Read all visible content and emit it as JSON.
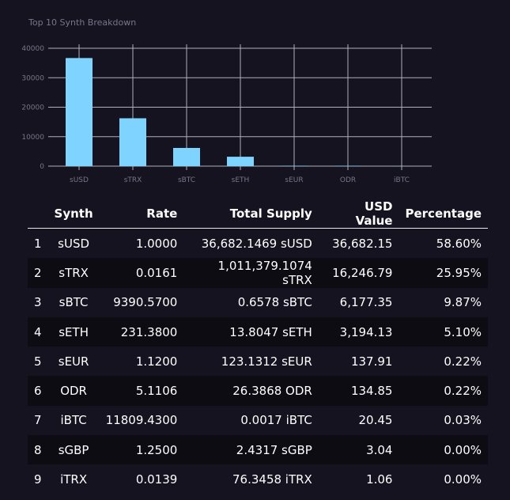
{
  "chart_data": {
    "type": "bar",
    "title": "Top 10 Synth Breakdown",
    "categories": [
      "sUSD",
      "sTRX",
      "sBTC",
      "sETH",
      "sEUR",
      "ODR",
      "iBTC"
    ],
    "values": [
      36682.15,
      16246.79,
      6177.35,
      3194.13,
      137.91,
      134.85,
      20.45
    ],
    "yticks": [
      0,
      10000,
      20000,
      30000,
      40000
    ],
    "ylim": [
      0,
      40000
    ],
    "grid": true,
    "bar_color": "#7fd3ff"
  },
  "table": {
    "headers": [
      "",
      "Synth",
      "Rate",
      "Total Supply",
      "USD Value",
      "Percentage"
    ],
    "rows": [
      [
        "1",
        "sUSD",
        "1.0000",
        "36,682.1469 sUSD",
        "36,682.15",
        "58.60%"
      ],
      [
        "2",
        "sTRX",
        "0.0161",
        "1,011,379.1074 sTRX",
        "16,246.79",
        "25.95%"
      ],
      [
        "3",
        "sBTC",
        "9390.5700",
        "0.6578 sBTC",
        "6,177.35",
        "9.87%"
      ],
      [
        "4",
        "sETH",
        "231.3800",
        "13.8047 sETH",
        "3,194.13",
        "5.10%"
      ],
      [
        "5",
        "sEUR",
        "1.1200",
        "123.1312 sEUR",
        "137.91",
        "0.22%"
      ],
      [
        "6",
        "ODR",
        "5.1106",
        "26.3868 ODR",
        "134.85",
        "0.22%"
      ],
      [
        "7",
        "iBTC",
        "11809.4300",
        "0.0017 iBTC",
        "20.45",
        "0.03%"
      ],
      [
        "8",
        "sGBP",
        "1.2500",
        "2.4317 sGBP",
        "3.04",
        "0.00%"
      ],
      [
        "9",
        "iTRX",
        "0.0139",
        "76.3458 iTRX",
        "1.06",
        "0.00%"
      ]
    ]
  }
}
